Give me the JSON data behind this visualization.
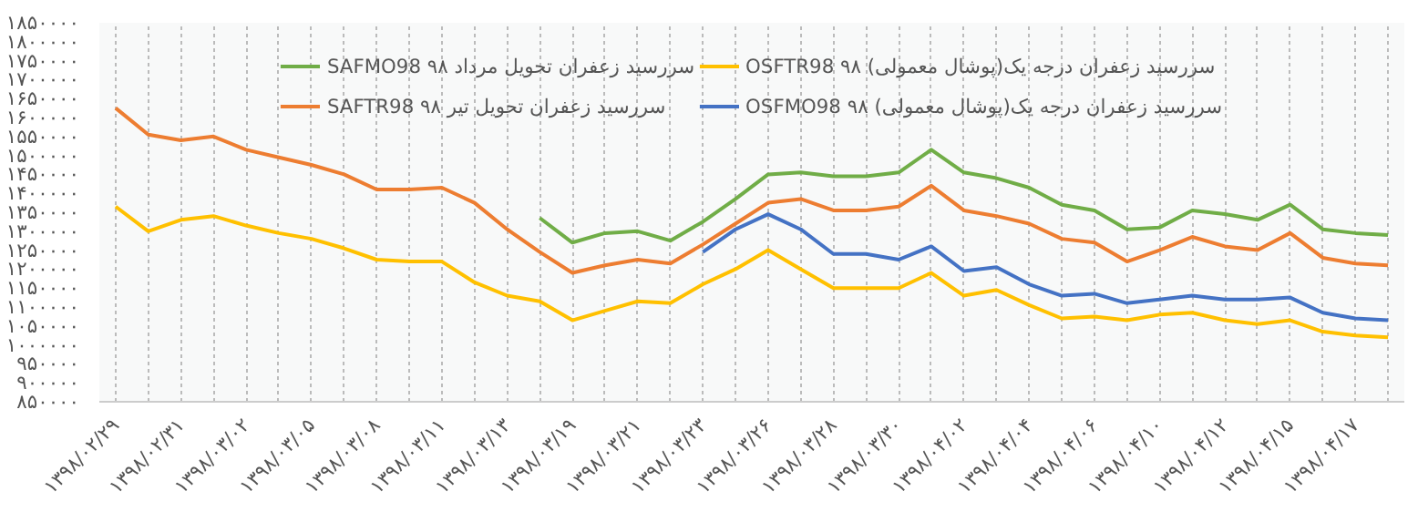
{
  "chart_data": {
    "type": "line",
    "categories": [
      "۱۳۹۸/۰۲/۲۹",
      null,
      "۱۳۹۸/۰۲/۳۱",
      null,
      "۱۳۹۸/۰۳/۰۲",
      null,
      "۱۳۹۸/۰۳/۰۵",
      null,
      "۱۳۹۸/۰۳/۰۸",
      null,
      "۱۳۹۸/۰۳/۱۱",
      null,
      "۱۳۹۸/۰۳/۱۳",
      null,
      "۱۳۹۸/۰۳/۱۹",
      null,
      "۱۳۹۸/۰۳/۲۱",
      null,
      "۱۳۹۸/۰۳/۲۳",
      null,
      "۱۳۹۸/۰۳/۲۶",
      null,
      "۱۳۹۸/۰۳/۲۸",
      null,
      "۱۳۹۸/۰۳/۳۰",
      null,
      "۱۳۹۸/۰۴/۰۲",
      null,
      "۱۳۹۸/۰۴/۰۴",
      null,
      "۱۳۹۸/۰۴/۰۶",
      null,
      "۱۳۹۸/۰۴/۱۰",
      null,
      "۱۳۹۸/۰۴/۱۲",
      null,
      "۱۳۹۸/۰۴/۱۵",
      null,
      "۱۳۹۸/۰۴/۱۷",
      null
    ],
    "series": [
      {
        "name": "SAFMO98 ۹۸ سررسید زعفران تحویل مرداد",
        "color": "#70ad47",
        "values": [
          null,
          null,
          null,
          null,
          null,
          null,
          null,
          null,
          null,
          null,
          null,
          null,
          null,
          1335000,
          1270000,
          1295000,
          1300000,
          1275000,
          1325000,
          1385000,
          1450000,
          1455000,
          1445000,
          1445000,
          1455000,
          1515000,
          1455000,
          1440000,
          1415000,
          1370000,
          1355000,
          1305000,
          1310000,
          1355000,
          1345000,
          1330000,
          1370000,
          1305000,
          1295000,
          1290000
        ]
      },
      {
        "name": "OSFTR98 ۹۸ سررسید زعفران درجه یک(پوشال معمولی)",
        "color": "#ffc000",
        "values": [
          1365000,
          1300000,
          1330000,
          1340000,
          1315000,
          1295000,
          1280000,
          1255000,
          1225000,
          1220000,
          1220000,
          1165000,
          1130000,
          1115000,
          1065000,
          1090000,
          1115000,
          1110000,
          1160000,
          1200000,
          1250000,
          1200000,
          1150000,
          1150000,
          1150000,
          1190000,
          1130000,
          1145000,
          1105000,
          1070000,
          1075000,
          1065000,
          1080000,
          1085000,
          1065000,
          1055000,
          1065000,
          1035000,
          1025000,
          1020000
        ]
      },
      {
        "name": "SAFTR98 ۹۸ سررسید زعفران تحویل تیر",
        "color": "#ed7d31",
        "values": [
          1625000,
          1555000,
          1540000,
          1550000,
          1515000,
          1495000,
          1475000,
          1450000,
          1410000,
          1410000,
          1415000,
          1375000,
          1305000,
          1245000,
          1190000,
          1210000,
          1225000,
          1215000,
          1265000,
          1320000,
          1375000,
          1385000,
          1355000,
          1355000,
          1365000,
          1420000,
          1355000,
          1340000,
          1320000,
          1280000,
          1270000,
          1220000,
          1250000,
          1285000,
          1260000,
          1250000,
          1295000,
          1230000,
          1215000,
          1210000
        ]
      },
      {
        "name": "OSFMO98 ۹۸ سررسید زعفران درجه یک(پوشال معمولی)",
        "color": "#4472c4",
        "values": [
          null,
          null,
          null,
          null,
          null,
          null,
          null,
          null,
          null,
          null,
          null,
          null,
          null,
          null,
          null,
          null,
          null,
          null,
          1245000,
          1305000,
          1345000,
          1305000,
          1240000,
          1240000,
          1225000,
          1260000,
          1195000,
          1205000,
          1160000,
          1130000,
          1135000,
          1110000,
          1120000,
          1130000,
          1120000,
          1120000,
          1125000,
          1085000,
          1070000,
          1065000
        ]
      }
    ],
    "ylim": [
      850000,
      1850000
    ],
    "yticks": [
      {
        "value": 850000,
        "label": "۸۵۰۰۰۰"
      },
      {
        "value": 900000,
        "label": "۹۰۰۰۰۰"
      },
      {
        "value": 950000,
        "label": "۹۵۰۰۰۰"
      },
      {
        "value": 1000000,
        "label": "۱۰۰۰۰۰۰"
      },
      {
        "value": 1050000,
        "label": "۱۰۵۰۰۰۰"
      },
      {
        "value": 1100000,
        "label": "۱۱۰۰۰۰۰"
      },
      {
        "value": 1150000,
        "label": "۱۱۵۰۰۰۰"
      },
      {
        "value": 1200000,
        "label": "۱۲۰۰۰۰۰"
      },
      {
        "value": 1250000,
        "label": "۱۲۵۰۰۰۰"
      },
      {
        "value": 1300000,
        "label": "۱۳۰۰۰۰۰"
      },
      {
        "value": 1350000,
        "label": "۱۳۵۰۰۰۰"
      },
      {
        "value": 1400000,
        "label": "۱۴۰۰۰۰۰"
      },
      {
        "value": 1450000,
        "label": "۱۴۵۰۰۰۰"
      },
      {
        "value": 1500000,
        "label": "۱۵۰۰۰۰۰"
      },
      {
        "value": 1550000,
        "label": "۱۵۵۰۰۰۰"
      },
      {
        "value": 1600000,
        "label": "۱۶۰۰۰۰۰"
      },
      {
        "value": 1650000,
        "label": "۱۶۵۰۰۰۰"
      },
      {
        "value": 1700000,
        "label": "۱۷۰۰۰۰۰"
      },
      {
        "value": 1750000,
        "label": "۱۷۵۰۰۰۰"
      },
      {
        "value": 1800000,
        "label": "۱۸۰۰۰۰۰"
      },
      {
        "value": 1850000,
        "label": "۱۸۵۰۰۰۰"
      }
    ],
    "grid": "x",
    "legend": "top",
    "marker": "none",
    "line_style": "solid"
  }
}
